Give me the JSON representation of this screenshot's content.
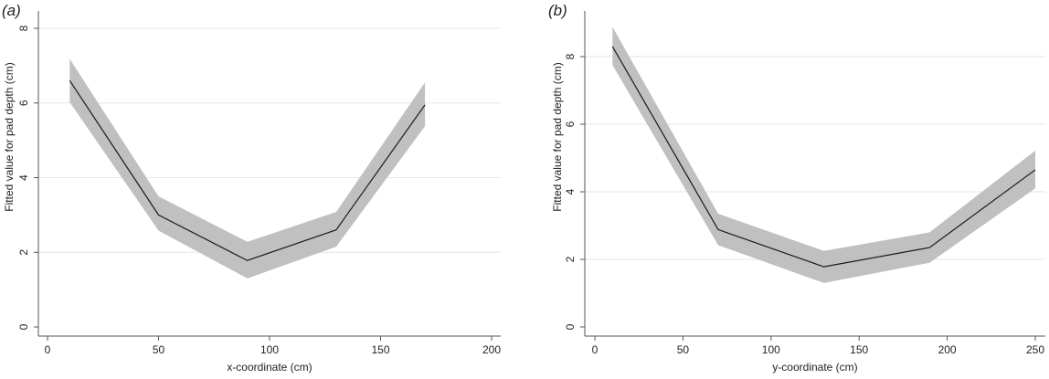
{
  "chart_data": [
    {
      "type": "line",
      "panel_label": "(a)",
      "xlabel": "x-coordinate (cm)",
      "ylabel": "Fitted value for pad depth (cm)",
      "xlim": [
        0,
        200
      ],
      "ylim": [
        0,
        8
      ],
      "xticks": [
        0,
        50,
        100,
        150,
        200
      ],
      "yticks": [
        0,
        2,
        4,
        6,
        8
      ],
      "grid": "horizontal",
      "series": [
        {
          "x": [
            10,
            50,
            90,
            130,
            170
          ],
          "y": [
            6.6,
            3.0,
            1.78,
            2.6,
            5.95
          ],
          "lower": [
            6.02,
            2.58,
            1.3,
            2.15,
            5.38
          ],
          "upper": [
            7.18,
            3.5,
            2.28,
            3.08,
            6.55
          ]
        }
      ]
    },
    {
      "type": "line",
      "panel_label": "(b)",
      "xlabel": "y-coordinate (cm)",
      "ylabel": "Fitted value for pad depth (cm)",
      "xlim": [
        0,
        250
      ],
      "ylim": [
        0,
        8
      ],
      "xticks": [
        0,
        50,
        100,
        150,
        200,
        250
      ],
      "yticks": [
        0,
        2,
        4,
        6,
        8
      ],
      "grid": "horizontal",
      "series": [
        {
          "x": [
            10,
            70,
            130,
            190,
            250
          ],
          "y": [
            8.3,
            2.88,
            1.78,
            2.35,
            4.65
          ],
          "lower": [
            7.75,
            2.42,
            1.3,
            1.9,
            4.1
          ],
          "upper": [
            8.88,
            3.35,
            2.25,
            2.8,
            5.22
          ]
        }
      ]
    }
  ],
  "colors": {
    "line": "#1a1a1a",
    "band": "#c0c0c0",
    "grid": "#e6e6e6",
    "axis": "#555555"
  }
}
